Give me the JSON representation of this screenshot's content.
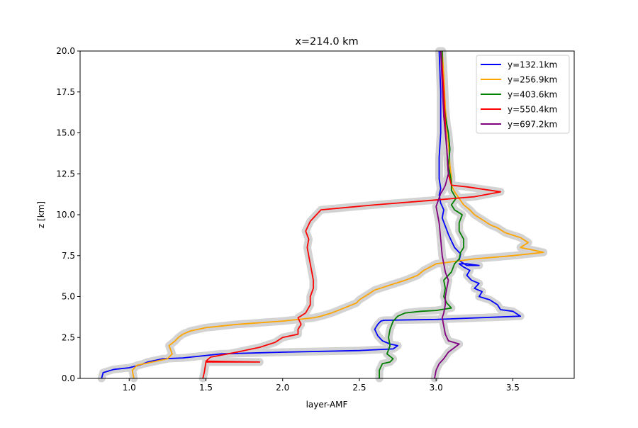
{
  "chart_data": {
    "type": "line",
    "title": "x=214.0 km",
    "xlabel": "layer-AMF",
    "ylabel": "z [km]",
    "xlim": [
      0.68,
      3.9
    ],
    "ylim": [
      0,
      20
    ],
    "x_ticks": [
      "1.0",
      "1.5",
      "2.0",
      "2.5",
      "3.0",
      "3.5"
    ],
    "x_tick_values": [
      1.0,
      1.5,
      2.0,
      2.5,
      3.0,
      3.5
    ],
    "y_ticks": [
      "0.0",
      "2.5",
      "5.0",
      "7.5",
      "10.0",
      "12.5",
      "15.0",
      "17.5",
      "20.0"
    ],
    "y_tick_values": [
      0,
      2.5,
      5,
      7.5,
      10,
      12.5,
      15,
      17.5,
      20
    ],
    "grid": false,
    "legend_position": "top-right",
    "uncertainty_color": "#d3d3d3",
    "series": [
      {
        "name": "y=132.1km",
        "color": "#0000ff",
        "x": [
          0.82,
          0.83,
          0.9,
          1.0,
          1.08,
          1.12,
          1.22,
          1.35,
          1.6,
          2.0,
          2.5,
          2.72,
          2.75,
          2.7,
          2.65,
          2.62,
          2.6,
          2.62,
          2.64,
          2.66,
          3.0,
          3.55,
          3.5,
          3.42,
          3.4,
          3.35,
          3.28,
          3.3,
          3.25,
          3.28,
          3.23,
          3.2,
          3.22,
          3.18,
          3.15,
          3.2,
          3.28,
          3.2,
          3.15,
          3.16,
          3.12,
          3.1,
          3.08,
          3.06,
          3.04,
          3.05,
          3.03,
          3.02,
          3.03,
          3.02,
          3.02,
          3.03,
          3.03,
          3.02
        ],
        "y": [
          0.0,
          0.35,
          0.55,
          0.65,
          0.85,
          1.0,
          1.2,
          1.25,
          1.5,
          1.6,
          1.7,
          1.8,
          2.0,
          2.1,
          2.3,
          2.6,
          3.0,
          3.3,
          3.5,
          3.55,
          3.6,
          3.8,
          4.1,
          4.2,
          4.5,
          4.8,
          5.0,
          5.3,
          5.5,
          5.8,
          6.0,
          6.3,
          6.6,
          6.8,
          7.0,
          7.0,
          6.9,
          6.9,
          7.2,
          7.6,
          8.0,
          8.4,
          8.8,
          9.3,
          9.8,
          10.3,
          10.7,
          11.2,
          11.6,
          12.2,
          13.5,
          15.0,
          17.5,
          20.0
        ]
      },
      {
        "name": "y=256.9km",
        "color": "#ffa500",
        "x": [
          1.03,
          1.02,
          1.05,
          1.15,
          1.25,
          1.28,
          1.26,
          1.3,
          1.32,
          1.35,
          1.4,
          1.5,
          1.7,
          2.0,
          2.2,
          2.25,
          2.32,
          2.4,
          2.48,
          2.5,
          2.55,
          2.6,
          2.7,
          2.8,
          2.88,
          2.92,
          3.0,
          3.25,
          3.5,
          3.7,
          3.65,
          3.6,
          3.55,
          3.6,
          3.55,
          3.45,
          3.4,
          3.35,
          3.3,
          3.25,
          3.22,
          3.18,
          3.15,
          3.12,
          3.1,
          3.1,
          3.09,
          3.08,
          3.06,
          3.05,
          3.04
        ],
        "y": [
          0.0,
          0.5,
          0.8,
          1.0,
          1.2,
          1.5,
          2.0,
          2.3,
          2.5,
          2.7,
          2.9,
          3.1,
          3.3,
          3.5,
          3.7,
          3.8,
          4.0,
          4.3,
          4.6,
          4.8,
          5.1,
          5.4,
          5.7,
          6.0,
          6.3,
          6.6,
          7.0,
          7.3,
          7.5,
          7.7,
          7.8,
          7.9,
          8.0,
          8.3,
          8.6,
          8.9,
          9.2,
          9.4,
          9.7,
          10.0,
          10.3,
          10.6,
          11.0,
          11.4,
          11.8,
          12.3,
          13.0,
          14.5,
          16.5,
          18.5,
          20.0
        ]
      },
      {
        "name": "y=403.6km",
        "color": "#008000",
        "x": [
          2.63,
          2.63,
          2.65,
          2.7,
          2.72,
          2.68,
          2.7,
          2.69,
          2.7,
          2.72,
          2.75,
          2.8,
          2.9,
          3.0,
          3.1,
          3.07,
          3.05,
          3.06,
          3.05,
          3.1,
          3.12,
          3.15,
          3.16,
          3.18,
          3.18,
          3.15,
          3.15,
          3.17,
          3.12,
          3.1,
          3.13,
          3.1,
          3.1,
          3.08,
          3.09,
          3.08,
          3.06,
          3.05,
          3.05,
          3.04,
          3.04
        ],
        "y": [
          0.0,
          0.5,
          0.9,
          1.0,
          1.2,
          1.5,
          2.0,
          2.5,
          3.0,
          3.5,
          3.8,
          4.0,
          4.1,
          4.15,
          4.3,
          4.6,
          5.0,
          5.5,
          6.0,
          6.5,
          7.0,
          7.3,
          7.7,
          8.0,
          8.5,
          9.0,
          9.5,
          10.0,
          10.3,
          10.6,
          11.0,
          11.5,
          12.0,
          13.0,
          14.0,
          15.0,
          16.0,
          17.0,
          17.5,
          18.5,
          20.0
        ]
      },
      {
        "name": "y=550.4km",
        "color": "#ff0000",
        "x": [
          1.48,
          1.49,
          1.5,
          1.85,
          1.5,
          1.53,
          1.7,
          1.85,
          1.95,
          2.0,
          2.1,
          2.1,
          2.12,
          2.1,
          2.15,
          2.18,
          2.18,
          2.2,
          2.2,
          2.19,
          2.18,
          2.17,
          2.16,
          2.17,
          2.15,
          2.18,
          2.25,
          2.6,
          3.0,
          3.25,
          3.42,
          3.2,
          3.1,
          3.08,
          3.07,
          3.06,
          3.05,
          3.04,
          3.03
        ],
        "y": [
          0.0,
          0.4,
          1.0,
          1.0,
          1.05,
          1.3,
          1.6,
          1.9,
          2.2,
          2.5,
          2.7,
          3.0,
          3.3,
          3.7,
          4.0,
          4.5,
          5.0,
          5.5,
          6.0,
          6.5,
          7.0,
          7.5,
          8.0,
          8.5,
          9.0,
          9.6,
          10.3,
          10.6,
          10.9,
          11.1,
          11.4,
          11.7,
          11.8,
          12.5,
          14.0,
          15.5,
          17.5,
          19.0,
          20.0
        ]
      },
      {
        "name": "y=697.2km",
        "color": "#800080",
        "x": [
          2.99,
          3.0,
          3.02,
          3.05,
          3.08,
          3.15,
          3.08,
          3.06,
          3.05,
          3.04,
          3.05,
          3.06,
          3.06,
          3.07,
          3.08,
          3.06,
          3.04,
          3.03,
          3.02,
          3.0,
          3.03,
          3.05,
          3.06,
          3.08,
          3.07,
          3.05,
          3.04,
          3.03
        ],
        "y": [
          0.0,
          0.5,
          0.9,
          1.2,
          1.6,
          2.1,
          2.3,
          2.7,
          3.2,
          3.7,
          4.0,
          4.5,
          5.0,
          5.5,
          6.0,
          6.5,
          7.5,
          8.5,
          9.5,
          10.5,
          11.3,
          11.6,
          11.8,
          12.5,
          14.0,
          16.0,
          18.0,
          20.0
        ]
      }
    ]
  }
}
